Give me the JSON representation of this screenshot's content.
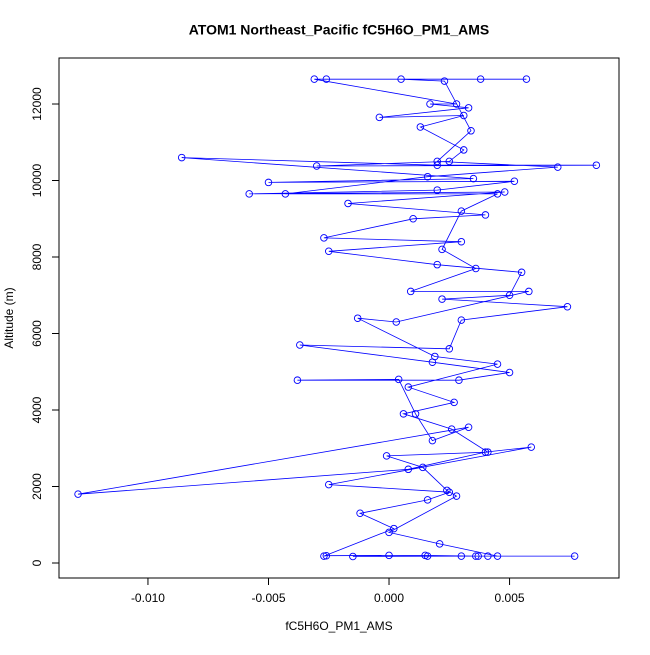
{
  "chart_data": {
    "type": "line",
    "title": "ATOM1 Northeast_Pacific fC5H6O_PM1_AMS",
    "x_label": "fC5H6O_PM1_AMS",
    "y_label": "Altitude (m)",
    "color": "#0000ff",
    "markers": true,
    "x": [
      0.0077,
      0.0041,
      0.0037,
      0.0015,
      0.0,
      -0.0026,
      -0.0027,
      0.0002,
      -0.0012,
      0.0016,
      0.0025,
      -0.0025,
      0.0059,
      0.004,
      0.0008,
      -0.0129,
      0.0033,
      0.0018,
      0.0011,
      0.0004,
      -0.0038,
      0.0029,
      0.005,
      0.0018,
      -0.0037,
      0.0025,
      0.003,
      0.0074,
      0.0022,
      0.005,
      0.0055,
      0.002,
      -0.0025,
      0.003,
      -0.0027,
      0.001,
      0.004,
      -0.0017,
      0.0048,
      -0.0058,
      0.002,
      0.0052,
      -0.005,
      0.0035,
      -0.0086,
      0.002,
      0.0086,
      -0.003,
      0.0025,
      0.0031,
      0.0013,
      0.0031,
      -0.0004,
      0.0033,
      0.0017,
      0.0028,
      -0.0031,
      0.0057,
      0.0038,
      -0.0026,
      0.0005,
      0.0023,
      0.0034,
      0.002,
      0.007,
      0.0016,
      -0.0043,
      0.0045,
      0.003,
      0.0022,
      0.0036,
      0.0009,
      0.0058,
      0.0003,
      -0.0013,
      0.0019,
      0.0045,
      0.0008,
      0.0027,
      0.0006,
      0.0026,
      0.0041,
      -0.0001,
      0.0014,
      0.0024,
      0.0028,
      0.0,
      0.0021,
      0.0045,
      0.0036,
      -0.0015,
      0.0016,
      0.003
    ],
    "values": [
      180,
      180,
      180,
      200,
      200,
      190,
      180,
      900,
      1300,
      1650,
      1850,
      2050,
      3030,
      2900,
      2450,
      1800,
      3550,
      3200,
      3900,
      4800,
      4780,
      4780,
      4980,
      5250,
      5700,
      5600,
      6350,
      6700,
      6900,
      7000,
      7600,
      7800,
      8150,
      8400,
      8500,
      9000,
      9100,
      9400,
      9700,
      9650,
      9750,
      9980,
      9950,
      10050,
      10600,
      10400,
      10400,
      10380,
      10500,
      10800,
      11400,
      11700,
      11650,
      11900,
      12000,
      12000,
      12650,
      12650,
      12650,
      12650,
      12650,
      12600,
      11300,
      10500,
      10350,
      10100,
      9650,
      9650,
      9200,
      8200,
      7700,
      7100,
      7100,
      6300,
      6400,
      5400,
      5200,
      4600,
      4200,
      3900,
      3500,
      2900,
      2800,
      2500,
      1900,
      1750,
      800,
      500,
      180,
      180,
      170,
      180,
      180
    ],
    "xlim": [
      -0.01369,
      0.00954
    ],
    "ylim": [
      -392,
      13203
    ],
    "xticks": [
      {
        "value": -0.01,
        "label": "-0.010"
      },
      -0.005,
      {
        "value": 0,
        "label": "0.000"
      },
      0.005
    ],
    "yticks": [
      0,
      2000,
      4000,
      6000,
      8000,
      10000,
      12000
    ]
  }
}
